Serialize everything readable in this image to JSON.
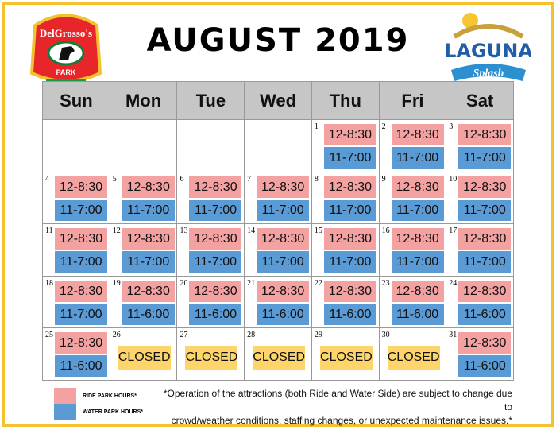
{
  "title": "AUGUST 2019",
  "logos": {
    "left": "DelGrosso's PARK TIPTON, PA",
    "right": "LAGUNA Splash"
  },
  "colors": {
    "ride": "#f4a1a1",
    "water": "#5b9bd5",
    "closed": "#fdd56b",
    "border": "#f3c22e"
  },
  "days": [
    "Sun",
    "Mon",
    "Tue",
    "Wed",
    "Thu",
    "Fri",
    "Sat"
  ],
  "weeks": [
    [
      null,
      null,
      null,
      null,
      {
        "day": "1",
        "ride": "12-8:30",
        "water": "11-7:00"
      },
      {
        "day": "2",
        "ride": "12-8:30",
        "water": "11-7:00"
      },
      {
        "day": "3",
        "ride": "12-8:30",
        "water": "11-7:00"
      }
    ],
    [
      {
        "day": "4",
        "ride": "12-8:30",
        "water": "11-7:00"
      },
      {
        "day": "5",
        "ride": "12-8:30",
        "water": "11-7:00"
      },
      {
        "day": "6",
        "ride": "12-8:30",
        "water": "11-7:00"
      },
      {
        "day": "7",
        "ride": "12-8:30",
        "water": "11-7:00"
      },
      {
        "day": "8",
        "ride": "12-8:30",
        "water": "11-7:00"
      },
      {
        "day": "9",
        "ride": "12-8:30",
        "water": "11-7:00"
      },
      {
        "day": "10",
        "ride": "12-8:30",
        "water": "11-7:00"
      }
    ],
    [
      {
        "day": "11",
        "ride": "12-8:30",
        "water": "11-7:00"
      },
      {
        "day": "12",
        "ride": "12-8:30",
        "water": "11-7:00"
      },
      {
        "day": "13",
        "ride": "12-8:30",
        "water": "11-7:00"
      },
      {
        "day": "14",
        "ride": "12-8:30",
        "water": "11-7:00"
      },
      {
        "day": "15",
        "ride": "12-8:30",
        "water": "11-7:00"
      },
      {
        "day": "16",
        "ride": "12-8:30",
        "water": "11-7:00"
      },
      {
        "day": "17",
        "ride": "12-8:30",
        "water": "11-7:00"
      }
    ],
    [
      {
        "day": "18",
        "ride": "12-8:30",
        "water": "11-7:00"
      },
      {
        "day": "19",
        "ride": "12-8:30",
        "water": "11-6:00"
      },
      {
        "day": "20",
        "ride": "12-8:30",
        "water": "11-6:00"
      },
      {
        "day": "21",
        "ride": "12-8:30",
        "water": "11-6:00"
      },
      {
        "day": "22",
        "ride": "12-8:30",
        "water": "11-6:00"
      },
      {
        "day": "23",
        "ride": "12-8:30",
        "water": "11-6:00"
      },
      {
        "day": "24",
        "ride": "12-8:30",
        "water": "11-6:00"
      }
    ],
    [
      {
        "day": "25",
        "ride": "12-8:30",
        "water": "11-6:00"
      },
      {
        "day": "26",
        "closed": "CLOSED"
      },
      {
        "day": "27",
        "closed": "CLOSED"
      },
      {
        "day": "28",
        "closed": "CLOSED"
      },
      {
        "day": "29",
        "closed": "CLOSED"
      },
      {
        "day": "30",
        "closed": "CLOSED"
      },
      {
        "day": "31",
        "ride": "12-8:30",
        "water": "11-6:00"
      }
    ]
  ],
  "legend": {
    "ride": "RIDE PARK HOURS*",
    "water": "WATER PARK HOURS*"
  },
  "note": {
    "line1": "*Operation of the attractions (both Ride and Water Side) are subject to change due to",
    "line2": "crowd/weather conditions, staffing changes, or unexpected maintenance issues.*"
  }
}
